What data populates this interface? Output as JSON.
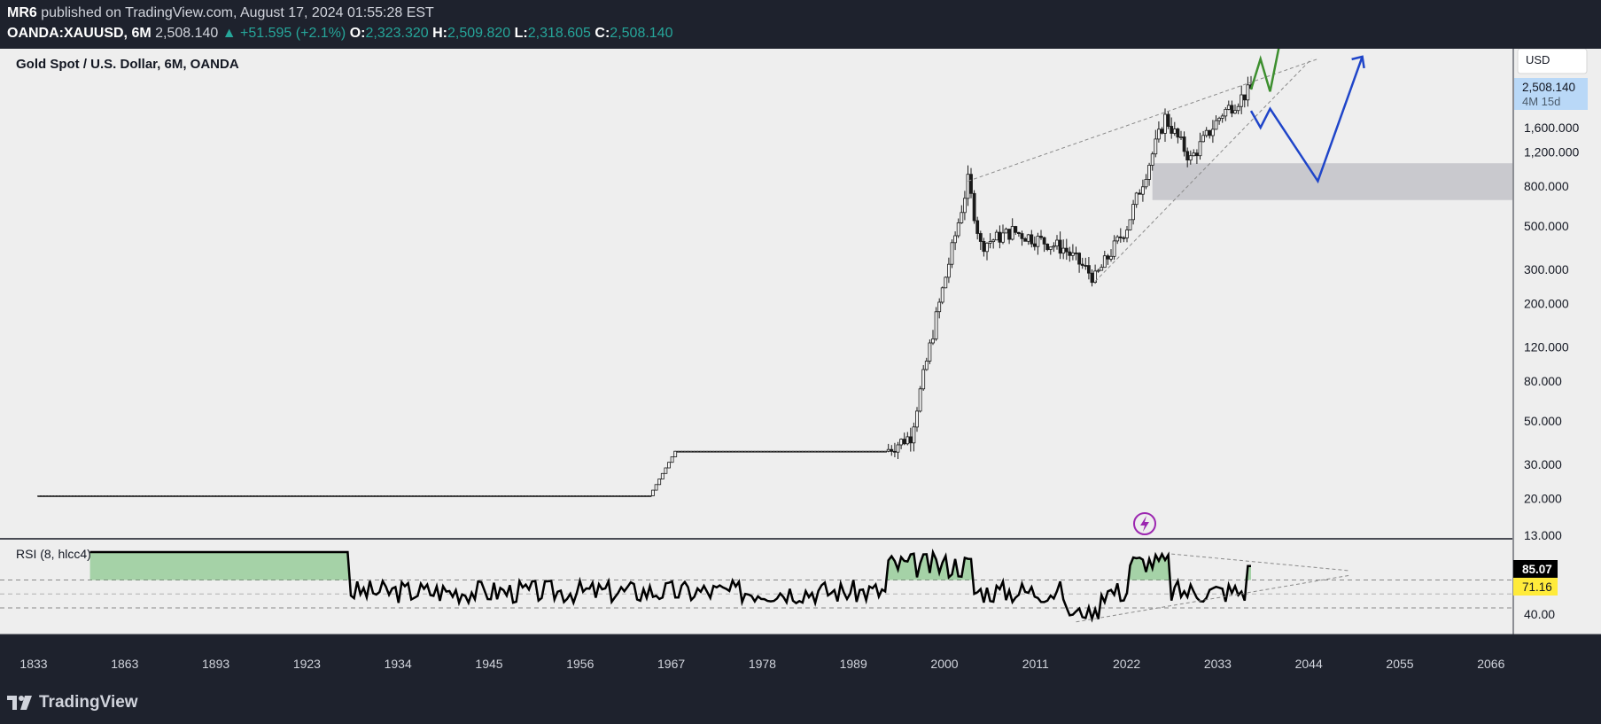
{
  "header": {
    "author": "MR6",
    "published_text": "published on TradingView.com, August 17, 2024 01:55:28 EST",
    "symbol": "OANDA:XAUUSD, 6M",
    "last": "2,508.140",
    "change": "▲ +51.595 (+2.1%)",
    "o_label": "O:",
    "o_value": "2,323.320",
    "h_label": "H:",
    "h_value": "2,509.820",
    "l_label": "L:",
    "l_value": "2,318.605",
    "c_label": "C:",
    "c_value": "2,508.140"
  },
  "price_pane": {
    "title": "Gold Spot / U.S. Dollar, 6M, OANDA",
    "currency_button": "USD",
    "price_badge": "2,508.140",
    "countdown_badge": "4M 15d",
    "y_ticks": [
      "1,600.000",
      "1,200.000",
      "800.000",
      "500.000",
      "300.000",
      "200.000",
      "120.000",
      "80.000",
      "50.000",
      "30.000",
      "20.000",
      "13.000"
    ]
  },
  "rsi_pane": {
    "title": "RSI (8, hlcc4)",
    "tick": "40.00",
    "rsi_badge": "85.07",
    "ma_badge": "71.16"
  },
  "x_ticks": [
    "1833",
    "1863",
    "1893",
    "1923",
    "1934",
    "1945",
    "1956",
    "1967",
    "1978",
    "1989",
    "2000",
    "2011",
    "2022",
    "2033",
    "2044",
    "2055",
    "2066"
  ],
  "brand": "TradingView",
  "colors": {
    "background": "#1e222d",
    "pane": "#eeeeee",
    "candles": "#1a1a1a",
    "green_projection": "#3d8f2f",
    "blue_projection": "#1f45c9",
    "zone": "#c2c2c8",
    "rsi_line": "#000000",
    "rsi_fill": "#4caf50",
    "up_value": "#26a69a",
    "price_badge": "#b9d8f7",
    "ma_badge": "#ffeb3b"
  },
  "chart_data": [
    {
      "type": "candlestick",
      "title": "Gold Spot / U.S. Dollar, 6M, OANDA",
      "y_scale": "log",
      "ylim": [
        13,
        2508
      ],
      "x_range": [
        1833,
        2071
      ],
      "approx_close_path": [
        {
          "x": 1834,
          "y": 20.7
        },
        {
          "x": 1900,
          "y": 20.7
        },
        {
          "x": 1930,
          "y": 20.7
        },
        {
          "x": 1934,
          "y": 35
        },
        {
          "x": 1967,
          "y": 35
        },
        {
          "x": 1971,
          "y": 42
        },
        {
          "x": 1975,
          "y": 170
        },
        {
          "x": 1980,
          "y": 850
        },
        {
          "x": 1982,
          "y": 400
        },
        {
          "x": 1987,
          "y": 470
        },
        {
          "x": 1995,
          "y": 385
        },
        {
          "x": 2000,
          "y": 270
        },
        {
          "x": 2005,
          "y": 500
        },
        {
          "x": 2011,
          "y": 1800
        },
        {
          "x": 2015,
          "y": 1100
        },
        {
          "x": 2020,
          "y": 1900
        },
        {
          "x": 2024.5,
          "y": 2508
        }
      ],
      "projections": {
        "green": [
          {
            "x": 2024.5,
            "y": 2508
          },
          {
            "x": 2026,
            "y": 3600
          },
          {
            "x": 2027.5,
            "y": 2450
          },
          {
            "x": 2029.5,
            "y": 5200
          }
        ],
        "blue": [
          {
            "x": 2024.5,
            "y": 1950
          },
          {
            "x": 2026,
            "y": 1600
          },
          {
            "x": 2027.5,
            "y": 2000
          },
          {
            "x": 2035,
            "y": 850
          },
          {
            "x": 2042,
            "y": 3700
          }
        ]
      },
      "zone": {
        "y_from": 680,
        "y_to": 1050,
        "x_from": 2009
      }
    },
    {
      "type": "line",
      "title": "RSI (8, hlcc4)",
      "last_value": 85.07,
      "ma_value": 71.16,
      "levels": [
        40,
        70
      ]
    }
  ]
}
